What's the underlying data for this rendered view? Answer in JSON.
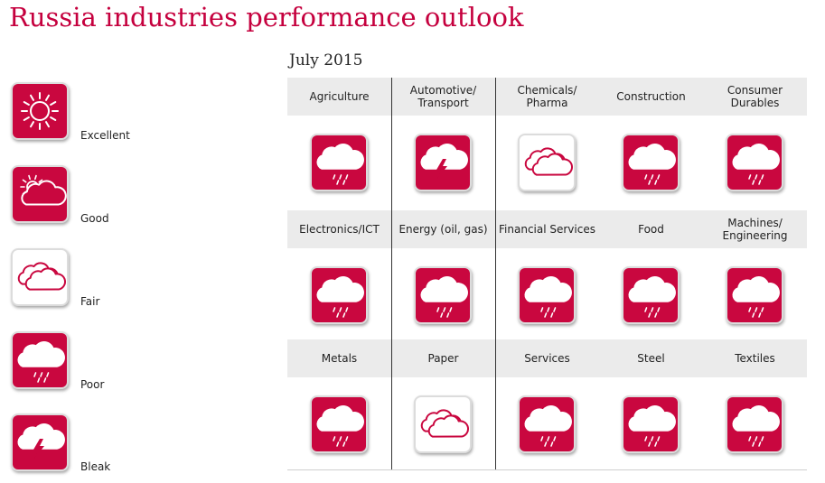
{
  "title": "Russia industries performance outlook",
  "date": "July 2015",
  "colors": {
    "accent": "#c9073f",
    "title": "#c5003e"
  },
  "legend": [
    {
      "label": "Excellent",
      "icon": "sun-icon"
    },
    {
      "label": "Good",
      "icon": "sun-cloud-icon"
    },
    {
      "label": "Fair",
      "icon": "cloud-icon"
    },
    {
      "label": "Poor",
      "icon": "rain-cloud-icon"
    },
    {
      "label": "Bleak",
      "icon": "storm-cloud-icon"
    }
  ],
  "industries": [
    {
      "name": "Agriculture",
      "rating": "Poor"
    },
    {
      "name": "Automotive/\nTransport",
      "rating": "Bleak"
    },
    {
      "name": "Chemicals/\nPharma",
      "rating": "Fair"
    },
    {
      "name": "Construction",
      "rating": "Poor"
    },
    {
      "name": "Consumer\nDurables",
      "rating": "Poor"
    },
    {
      "name": "Electronics/ICT",
      "rating": "Poor"
    },
    {
      "name": "Energy (oil, gas)",
      "rating": "Poor"
    },
    {
      "name": "Financial Services",
      "rating": "Poor"
    },
    {
      "name": "Food",
      "rating": "Poor"
    },
    {
      "name": "Machines/\nEngineering",
      "rating": "Poor"
    },
    {
      "name": "Metals",
      "rating": "Poor"
    },
    {
      "name": "Paper",
      "rating": "Fair"
    },
    {
      "name": "Services",
      "rating": "Poor"
    },
    {
      "name": "Steel",
      "rating": "Poor"
    },
    {
      "name": "Textiles",
      "rating": "Poor"
    }
  ]
}
